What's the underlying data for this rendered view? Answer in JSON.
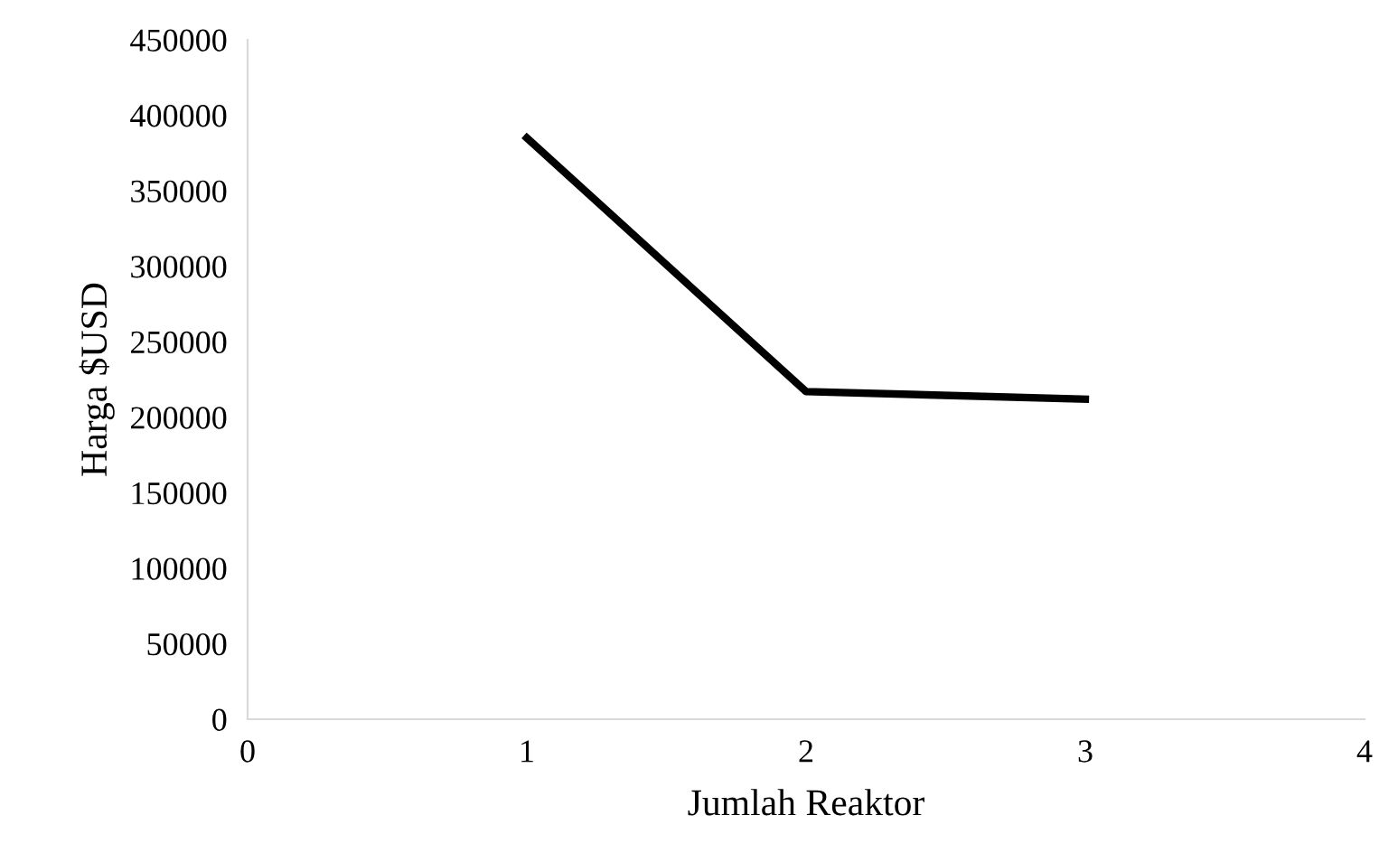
{
  "chart_data": {
    "type": "line",
    "xlabel": "Jumlah Reaktor",
    "ylabel": "Harga $USD",
    "x": [
      1,
      2,
      3
    ],
    "series": [
      {
        "color": "#000000",
        "values": [
          385000,
          217000,
          212000
        ]
      }
    ],
    "xlim": [
      0,
      4
    ],
    "xticks": [
      0,
      1,
      2,
      3,
      4
    ],
    "ylim": [
      0,
      450000
    ],
    "yticks": [
      0,
      50000,
      100000,
      150000,
      200000,
      250000,
      300000,
      350000,
      400000,
      450000
    ],
    "grid": false,
    "legend": false,
    "marker": "none",
    "line_style": "solid"
  }
}
